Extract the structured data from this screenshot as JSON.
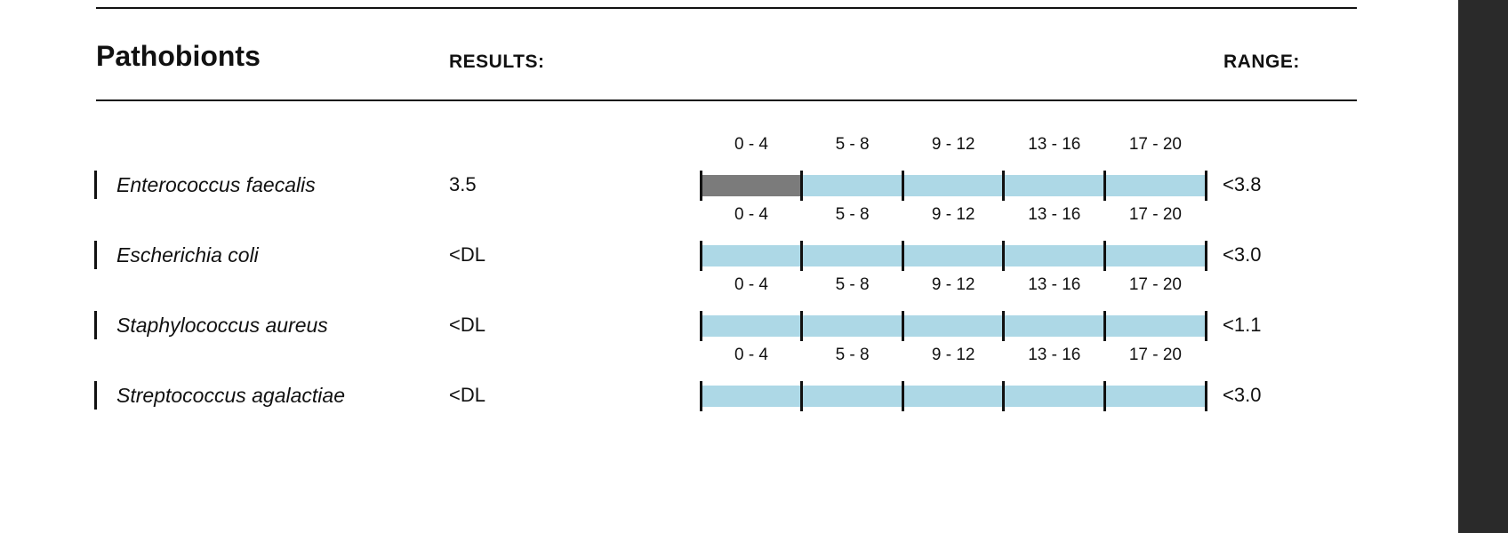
{
  "section": {
    "title": "Pathobionts",
    "results_header": "RESULTS:",
    "range_header": "RANGE:"
  },
  "scale_labels": [
    "0 - 4",
    "5 - 8",
    "9 - 12",
    "13 - 16",
    "17 - 20"
  ],
  "colors": {
    "segment_fill": "#add8e6",
    "segment_active": "#7b7b7b",
    "rule": "#111111"
  },
  "rows": [
    {
      "name": "Enterococcus faecalis",
      "result": "3.5",
      "range": "<3.8",
      "active_segment": 0
    },
    {
      "name": "Escherichia coli",
      "result": "<DL",
      "range": "<3.0",
      "active_segment": null
    },
    {
      "name": "Staphylococcus aureus",
      "result": "<DL",
      "range": "<1.1",
      "active_segment": null
    },
    {
      "name": "Streptococcus agalactiae",
      "result": "<DL",
      "range": "<3.0",
      "active_segment": null
    }
  ]
}
